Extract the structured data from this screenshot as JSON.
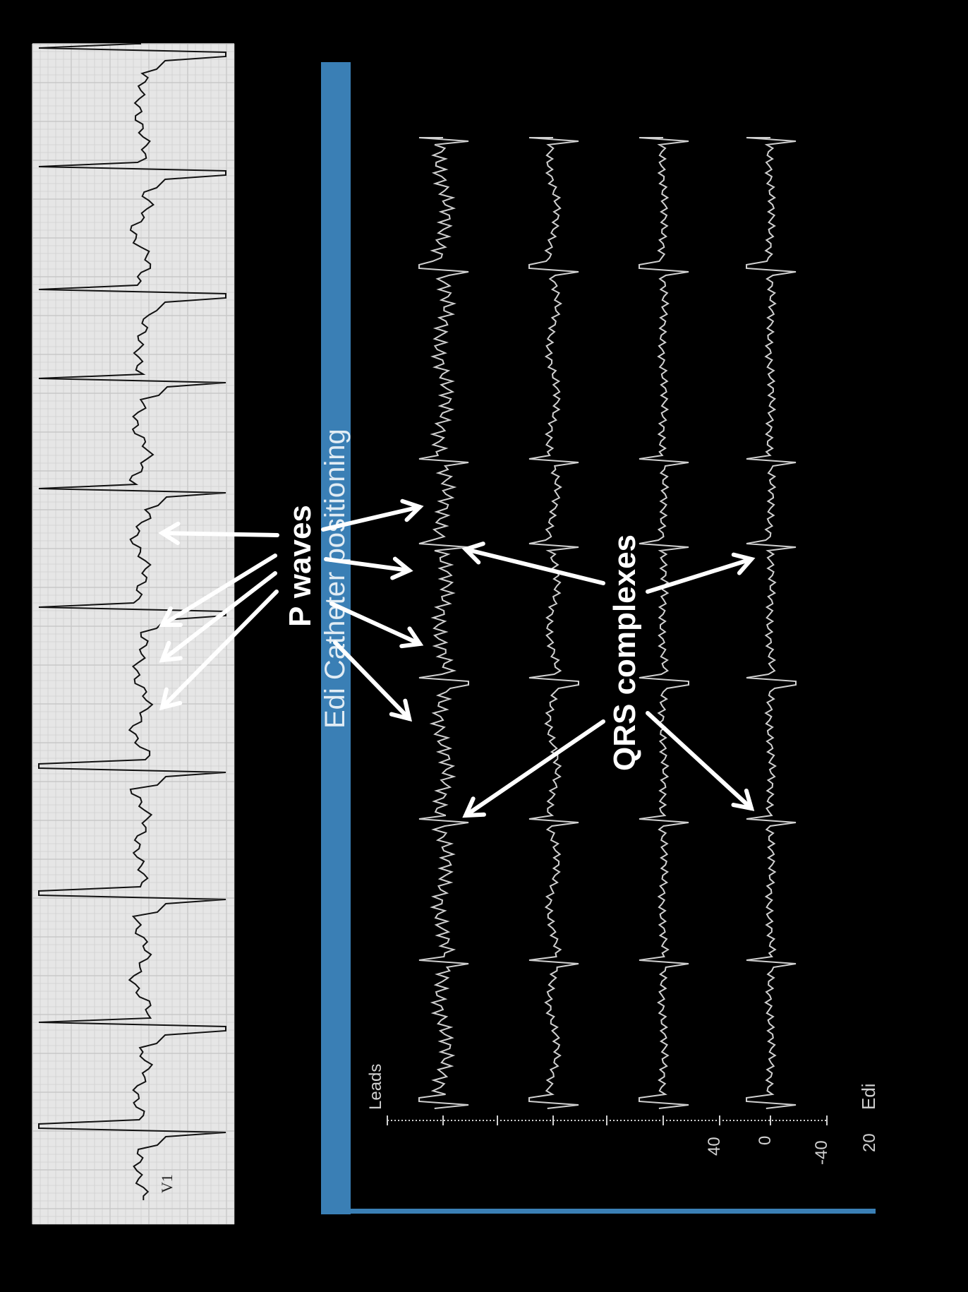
{
  "ecg_strip": {
    "lead_label": "V1",
    "grid_color": "#c8c8c8",
    "paper_color": "#e6e6e6",
    "trace_color": "#111111"
  },
  "edi_panel": {
    "title": "Edi Catheter positioning",
    "title_bar_color": "#3a7fb5",
    "trace_color": "#d0d0d0",
    "leads_label": "Leads",
    "edi_label": "Edi",
    "axis_ticks": [
      "40",
      "0",
      "-40",
      "20"
    ]
  },
  "annotations": {
    "p_waves": "P waves",
    "qrs_complexes": "QRS complexes",
    "arrow_color": "#ffffff"
  }
}
